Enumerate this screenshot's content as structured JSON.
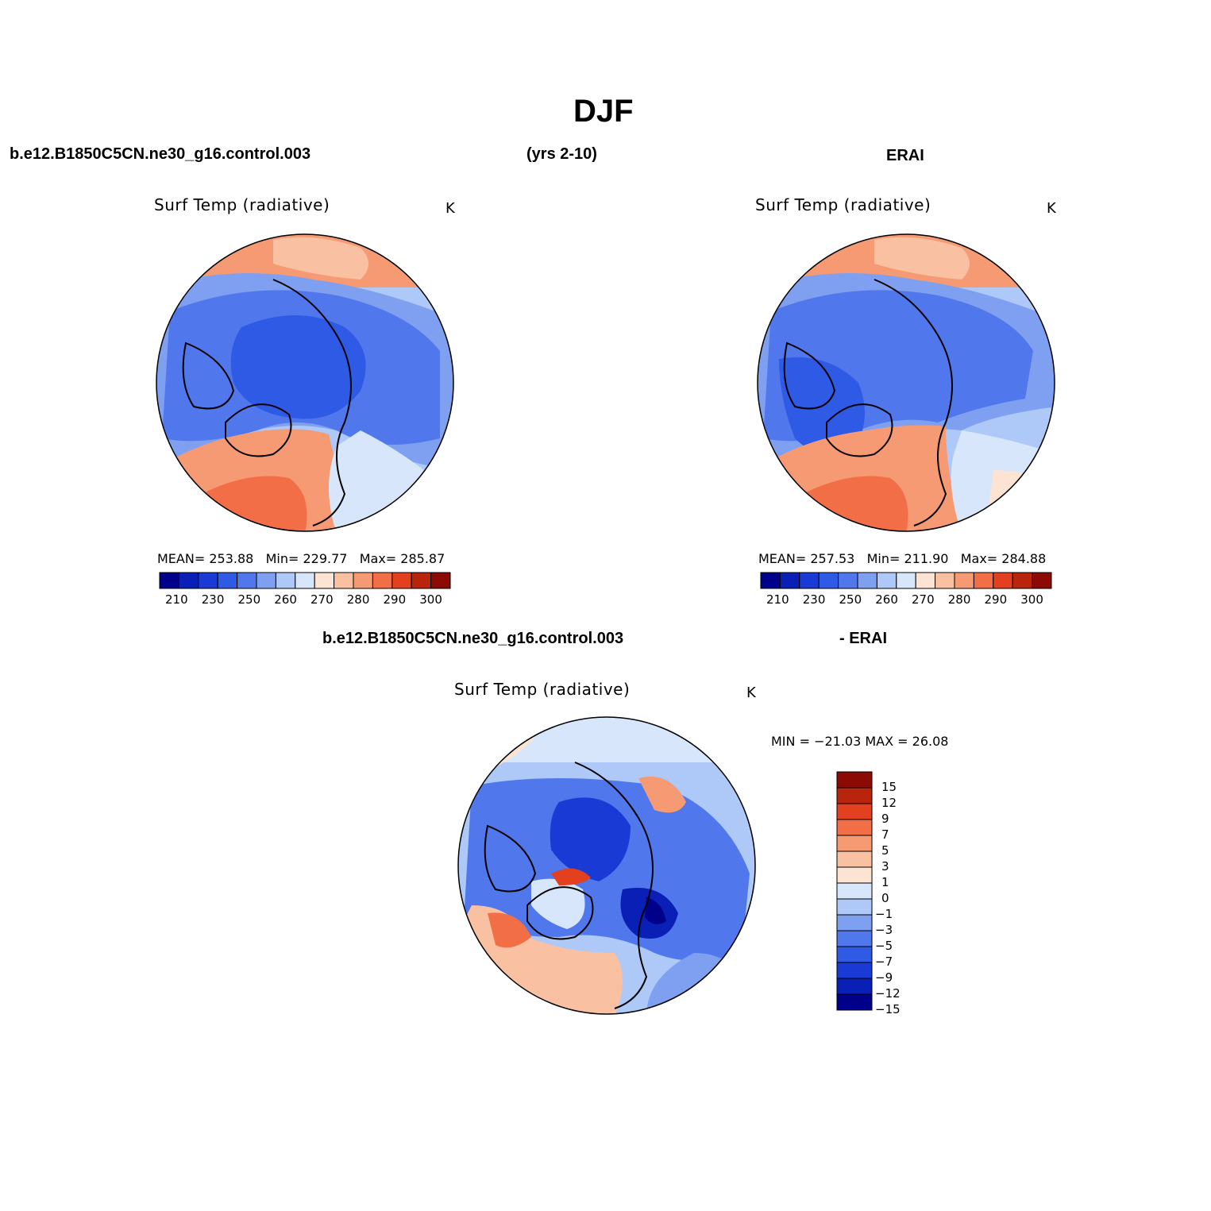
{
  "page": {
    "title": "DJF",
    "case_name": "b.e12.B1850C5CN.ne30_g16.control.003",
    "years": "(yrs 2-10)",
    "obs_name": "ERAI",
    "diff_case": "b.e12.B1850C5CN.ne30_g16.control.003",
    "diff_obs": "- ERAI"
  },
  "colors": {
    "abs_scale": [
      "#00008b",
      "#0a1fb5",
      "#1a3ad6",
      "#2f5ae6",
      "#5078ec",
      "#7fa0f0",
      "#aec8f7",
      "#d7e6fb",
      "#fde4d2",
      "#f9c1a2",
      "#f69a74",
      "#f26e47",
      "#e2401e",
      "#b8240c",
      "#8b0a04"
    ],
    "diff_scale": [
      "#00008b",
      "#0a1fb5",
      "#1a3ad6",
      "#2f5ae6",
      "#5078ec",
      "#7fa0f0",
      "#aec8f7",
      "#d7e6fb",
      "#fde4d2",
      "#f9c1a2",
      "#f69a74",
      "#f26e47",
      "#e2401e",
      "#b8240c",
      "#8b0a04"
    ]
  },
  "panels": [
    {
      "id": "model",
      "plot_title": "Surf Temp (radiative)",
      "units": "K",
      "mean_label": "MEAN=",
      "mean": "253.88",
      "min_label": "Min=",
      "min": "229.77",
      "max_label": "Max=",
      "max": "285.87",
      "ticks": [
        "210",
        "230",
        "250",
        "260",
        "270",
        "280",
        "290",
        "300"
      ]
    },
    {
      "id": "obs",
      "plot_title": "Surf Temp (radiative)",
      "units": "K",
      "mean_label": "MEAN=",
      "mean": "257.53",
      "min_label": "Min=",
      "min": "211.90",
      "max_label": "Max=",
      "max": "284.88",
      "ticks": [
        "210",
        "230",
        "250",
        "260",
        "270",
        "280",
        "290",
        "300"
      ]
    }
  ],
  "diff": {
    "plot_title": "Surf Temp (radiative)",
    "units": "K",
    "minmax": "MIN = −21.03 MAX =  26.08",
    "ticks": [
      "15",
      "12",
      "9",
      "7",
      "5",
      "3",
      "1",
      "0",
      "−1",
      "−3",
      "−5",
      "−7",
      "−9",
      "−12",
      "−15"
    ]
  }
}
